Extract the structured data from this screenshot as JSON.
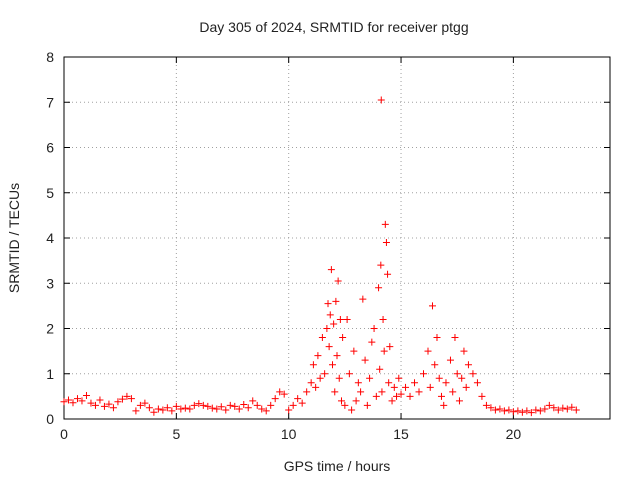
{
  "chart_data": {
    "type": "scatter",
    "title": "Day 305 of 2024, SRMTID for receiver ptgg",
    "xlabel": "GPS time / hours",
    "ylabel": "SRMTID / TECUs",
    "xlim": [
      0,
      24.3
    ],
    "ylim": [
      0,
      8
    ],
    "xticks": [
      0,
      5,
      10,
      15,
      20
    ],
    "yticks": [
      0,
      1,
      2,
      3,
      4,
      5,
      6,
      7,
      8
    ],
    "grid": true,
    "marker": "+",
    "color": "#ff0000",
    "series": [
      {
        "name": "SRMTID",
        "points": [
          [
            0.0,
            0.38
          ],
          [
            0.2,
            0.42
          ],
          [
            0.4,
            0.36
          ],
          [
            0.6,
            0.45
          ],
          [
            0.8,
            0.4
          ],
          [
            1.0,
            0.52
          ],
          [
            1.2,
            0.35
          ],
          [
            1.4,
            0.3
          ],
          [
            1.6,
            0.42
          ],
          [
            1.8,
            0.28
          ],
          [
            2.0,
            0.33
          ],
          [
            2.2,
            0.25
          ],
          [
            2.4,
            0.38
          ],
          [
            2.6,
            0.44
          ],
          [
            2.8,
            0.5
          ],
          [
            3.0,
            0.45
          ],
          [
            3.2,
            0.18
          ],
          [
            3.4,
            0.3
          ],
          [
            3.6,
            0.35
          ],
          [
            3.8,
            0.25
          ],
          [
            4.0,
            0.15
          ],
          [
            4.2,
            0.22
          ],
          [
            4.4,
            0.2
          ],
          [
            4.6,
            0.25
          ],
          [
            4.8,
            0.18
          ],
          [
            5.0,
            0.28
          ],
          [
            5.2,
            0.22
          ],
          [
            5.4,
            0.24
          ],
          [
            5.6,
            0.22
          ],
          [
            5.8,
            0.3
          ],
          [
            6.0,
            0.34
          ],
          [
            6.2,
            0.3
          ],
          [
            6.4,
            0.28
          ],
          [
            6.6,
            0.24
          ],
          [
            6.8,
            0.22
          ],
          [
            7.0,
            0.27
          ],
          [
            7.2,
            0.2
          ],
          [
            7.4,
            0.3
          ],
          [
            7.6,
            0.28
          ],
          [
            7.8,
            0.22
          ],
          [
            8.0,
            0.32
          ],
          [
            8.2,
            0.25
          ],
          [
            8.4,
            0.4
          ],
          [
            8.6,
            0.3
          ],
          [
            8.8,
            0.22
          ],
          [
            9.0,
            0.18
          ],
          [
            9.2,
            0.3
          ],
          [
            9.4,
            0.45
          ],
          [
            9.6,
            0.6
          ],
          [
            9.8,
            0.55
          ],
          [
            10.0,
            0.2
          ],
          [
            10.2,
            0.3
          ],
          [
            10.4,
            0.45
          ],
          [
            10.6,
            0.35
          ],
          [
            10.8,
            0.6
          ],
          [
            11.0,
            0.8
          ],
          [
            11.1,
            1.2
          ],
          [
            11.2,
            0.7
          ],
          [
            11.3,
            1.4
          ],
          [
            11.4,
            0.9
          ],
          [
            11.5,
            1.8
          ],
          [
            11.6,
            1.0
          ],
          [
            11.7,
            2.0
          ],
          [
            11.75,
            2.55
          ],
          [
            11.8,
            1.6
          ],
          [
            11.85,
            2.3
          ],
          [
            11.9,
            3.3
          ],
          [
            11.95,
            1.2
          ],
          [
            12.0,
            2.1
          ],
          [
            12.05,
            0.6
          ],
          [
            12.1,
            2.6
          ],
          [
            12.15,
            1.4
          ],
          [
            12.2,
            3.05
          ],
          [
            12.25,
            0.9
          ],
          [
            12.3,
            2.2
          ],
          [
            12.35,
            0.4
          ],
          [
            12.4,
            1.8
          ],
          [
            12.5,
            0.3
          ],
          [
            12.6,
            2.2
          ],
          [
            12.7,
            1.0
          ],
          [
            12.8,
            0.2
          ],
          [
            12.9,
            1.5
          ],
          [
            13.0,
            0.4
          ],
          [
            13.1,
            0.8
          ],
          [
            13.2,
            0.6
          ],
          [
            13.3,
            2.65
          ],
          [
            13.4,
            1.3
          ],
          [
            13.5,
            0.3
          ],
          [
            13.6,
            0.9
          ],
          [
            13.7,
            1.7
          ],
          [
            13.8,
            2.0
          ],
          [
            13.9,
            0.5
          ],
          [
            14.0,
            2.9
          ],
          [
            14.05,
            1.1
          ],
          [
            14.1,
            3.4
          ],
          [
            14.12,
            7.05
          ],
          [
            14.15,
            0.6
          ],
          [
            14.2,
            2.2
          ],
          [
            14.25,
            1.5
          ],
          [
            14.3,
            4.3
          ],
          [
            14.35,
            3.9
          ],
          [
            14.4,
            3.2
          ],
          [
            14.45,
            0.8
          ],
          [
            14.5,
            1.6
          ],
          [
            14.6,
            0.4
          ],
          [
            14.7,
            0.7
          ],
          [
            14.8,
            0.5
          ],
          [
            14.9,
            0.9
          ],
          [
            15.0,
            0.55
          ],
          [
            15.2,
            0.7
          ],
          [
            15.4,
            0.5
          ],
          [
            15.6,
            0.8
          ],
          [
            15.8,
            0.6
          ],
          [
            16.0,
            1.0
          ],
          [
            16.2,
            1.5
          ],
          [
            16.3,
            0.7
          ],
          [
            16.4,
            2.5
          ],
          [
            16.5,
            1.2
          ],
          [
            16.6,
            1.8
          ],
          [
            16.7,
            0.9
          ],
          [
            16.8,
            0.5
          ],
          [
            16.9,
            0.3
          ],
          [
            17.0,
            0.8
          ],
          [
            17.2,
            1.3
          ],
          [
            17.3,
            0.6
          ],
          [
            17.4,
            1.8
          ],
          [
            17.5,
            1.0
          ],
          [
            17.6,
            0.4
          ],
          [
            17.7,
            0.9
          ],
          [
            17.8,
            1.5
          ],
          [
            17.9,
            0.7
          ],
          [
            18.0,
            1.2
          ],
          [
            18.2,
            1.0
          ],
          [
            18.4,
            0.8
          ],
          [
            18.6,
            0.5
          ],
          [
            18.8,
            0.3
          ],
          [
            19.0,
            0.25
          ],
          [
            19.2,
            0.2
          ],
          [
            19.4,
            0.22
          ],
          [
            19.6,
            0.18
          ],
          [
            19.8,
            0.2
          ],
          [
            20.0,
            0.16
          ],
          [
            20.2,
            0.18
          ],
          [
            20.4,
            0.15
          ],
          [
            20.6,
            0.18
          ],
          [
            20.8,
            0.14
          ],
          [
            21.0,
            0.2
          ],
          [
            21.2,
            0.18
          ],
          [
            21.4,
            0.22
          ],
          [
            21.6,
            0.3
          ],
          [
            21.8,
            0.25
          ],
          [
            22.0,
            0.2
          ],
          [
            22.2,
            0.24
          ],
          [
            22.4,
            0.22
          ],
          [
            22.6,
            0.26
          ],
          [
            22.8,
            0.2
          ]
        ]
      }
    ]
  }
}
